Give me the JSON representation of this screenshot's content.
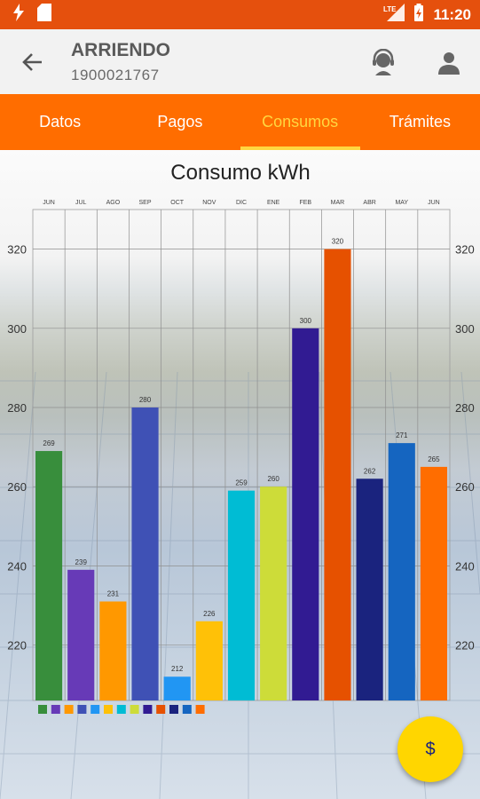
{
  "status_bar": {
    "time": "11:20",
    "network": "LTE"
  },
  "app_bar": {
    "title": "ARRIENDO",
    "subtitle": "1900021767"
  },
  "tabs": [
    {
      "label": "Datos",
      "active": false
    },
    {
      "label": "Pagos",
      "active": false
    },
    {
      "label": "Consumos",
      "active": true
    },
    {
      "label": "Trámites",
      "active": false
    }
  ],
  "fab": {
    "label": "$"
  },
  "chart_data": {
    "type": "bar",
    "title": "Consumo kWh",
    "categories": [
      "JUN",
      "JUL",
      "AGO",
      "SEP",
      "OCT",
      "NOV",
      "DIC",
      "ENE",
      "FEB",
      "MAR",
      "ABR",
      "MAY",
      "JUN"
    ],
    "values": [
      269,
      239,
      231,
      280,
      212,
      226,
      259,
      260,
      300,
      320,
      262,
      271,
      265
    ],
    "colors": [
      "#388e3c",
      "#673ab7",
      "#ff9800",
      "#3f51b5",
      "#2196f3",
      "#ffc107",
      "#00bcd4",
      "#cddc39",
      "#311b92",
      "#e65100",
      "#1a237e",
      "#1565c0",
      "#ff6d00"
    ],
    "y_ticks": [
      220,
      240,
      260,
      280,
      300,
      320
    ],
    "ylim": [
      206,
      330
    ],
    "grid": true,
    "data_labels": true,
    "legend": "bottom-left"
  }
}
